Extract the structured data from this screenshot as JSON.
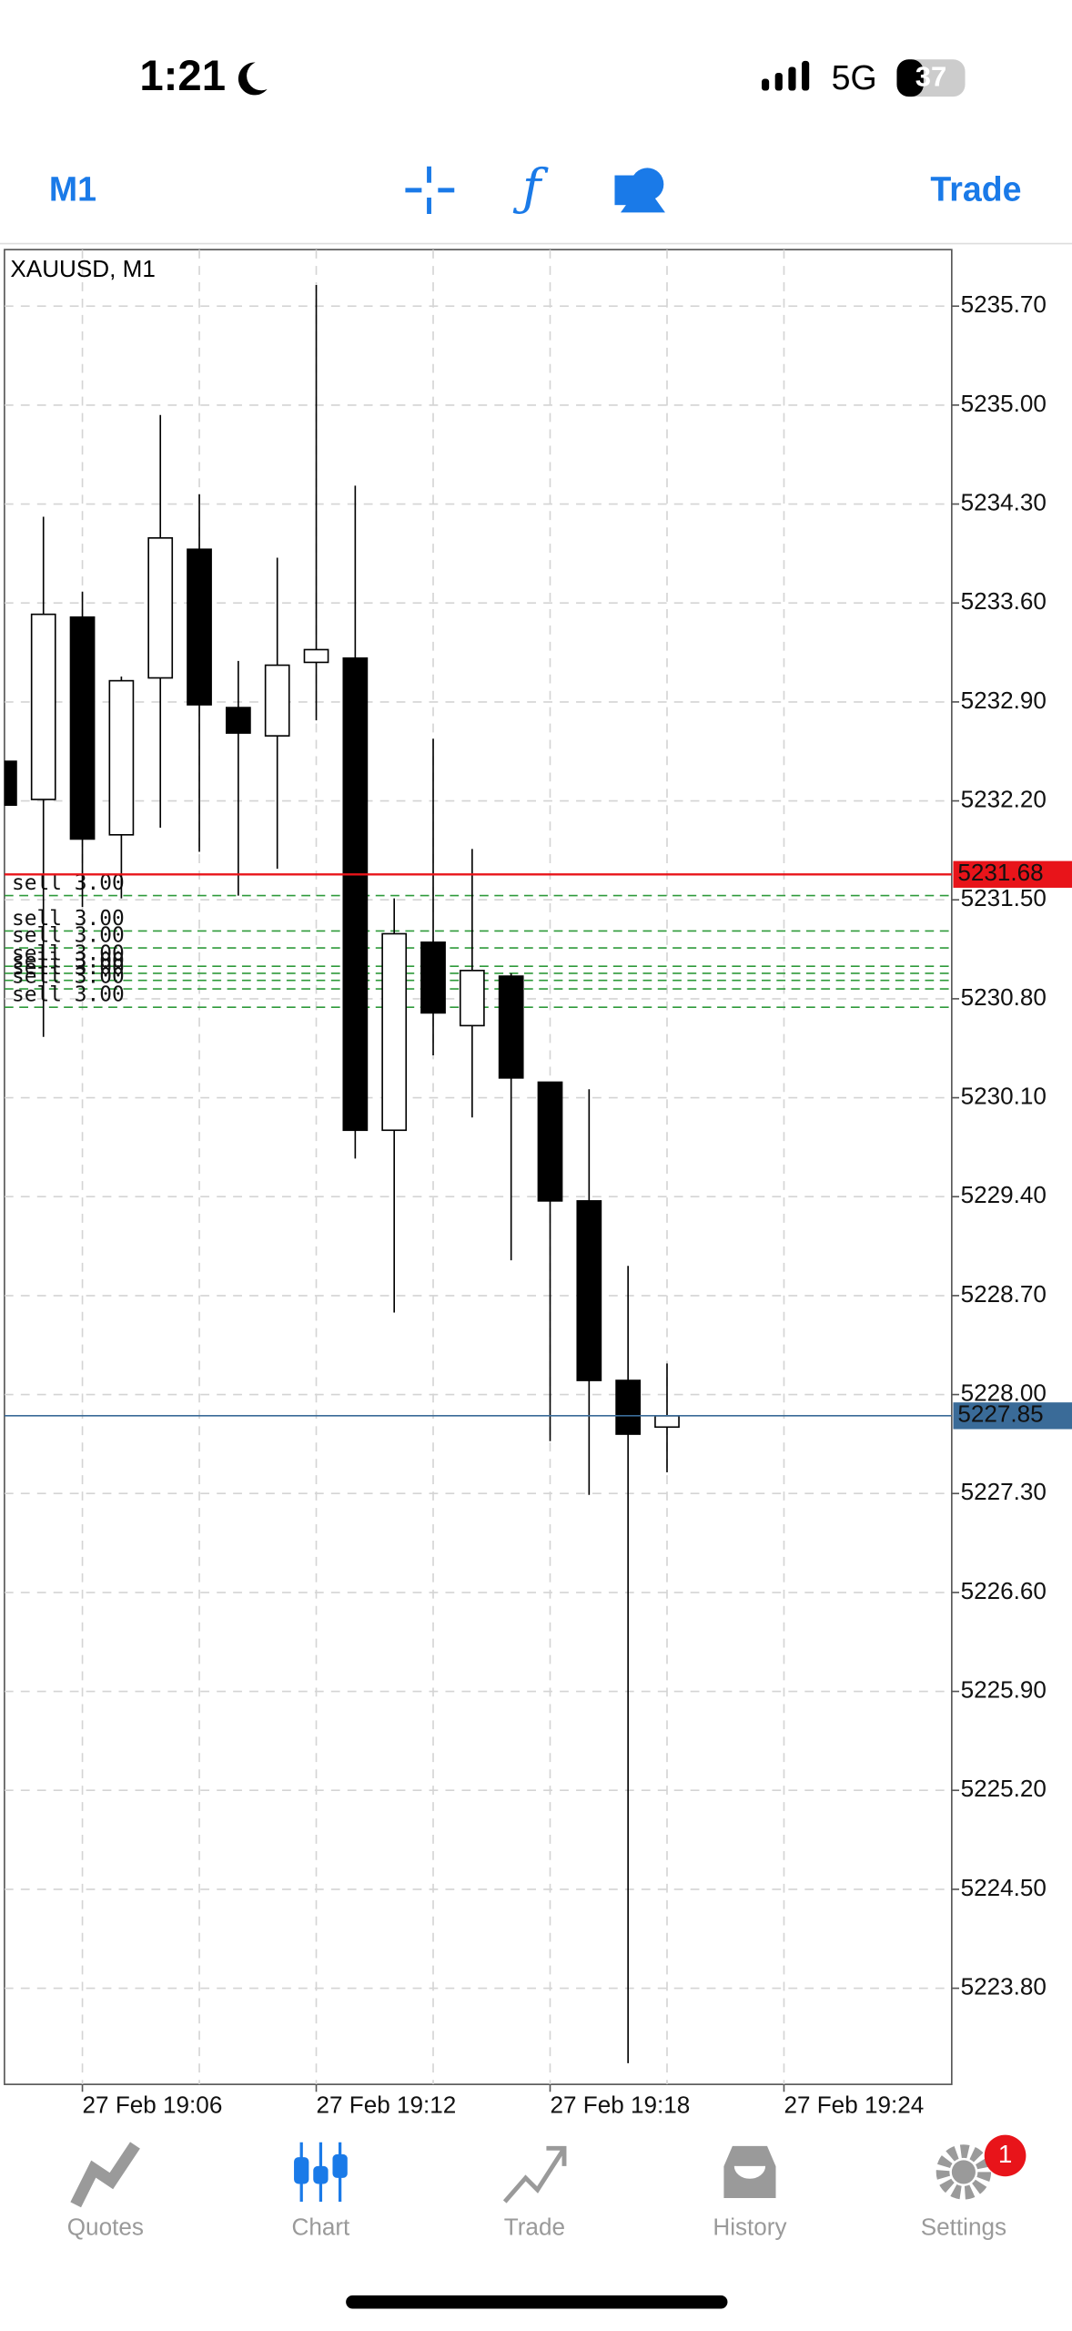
{
  "status_bar": {
    "time": "1:21",
    "network": "5G",
    "battery": "37"
  },
  "toolbar": {
    "timeframe": "M1",
    "trade": "Trade"
  },
  "chart_data": {
    "type": "candlestick",
    "title": "XAUUSD, M1",
    "x": [
      "27 Feb 19:04",
      "27 Feb 19:05",
      "27 Feb 19:06",
      "27 Feb 19:07",
      "27 Feb 19:08",
      "27 Feb 19:09",
      "27 Feb 19:10",
      "27 Feb 19:11",
      "27 Feb 19:12",
      "27 Feb 19:13",
      "27 Feb 19:14",
      "27 Feb 19:15",
      "27 Feb 19:16",
      "27 Feb 19:17",
      "27 Feb 19:18",
      "27 Feb 19:19",
      "27 Feb 19:20",
      "27 Feb 19:21"
    ],
    "open": [
      5232.48,
      5232.21,
      5233.5,
      5231.96,
      5233.07,
      5233.98,
      5232.86,
      5232.66,
      5233.18,
      5233.21,
      5229.87,
      5231.2,
      5230.61,
      5230.96,
      5230.21,
      5229.37,
      5228.1,
      5227.77
    ],
    "high": [
      5232.48,
      5234.21,
      5233.68,
      5233.08,
      5234.93,
      5234.37,
      5233.19,
      5233.92,
      5235.85,
      5234.43,
      5231.51,
      5232.64,
      5231.86,
      5230.98,
      5230.16,
      5230.16,
      5228.91,
      5228.22
    ],
    "low": [
      5232.17,
      5230.53,
      5231.45,
      5231.51,
      5232.01,
      5231.84,
      5231.53,
      5231.72,
      5232.77,
      5229.67,
      5228.58,
      5230.4,
      5229.96,
      5228.95,
      5227.67,
      5227.29,
      5223.27,
      5227.45
    ],
    "close": [
      5232.17,
      5233.52,
      5231.93,
      5233.05,
      5234.06,
      5232.88,
      5232.68,
      5233.16,
      5233.27,
      5229.87,
      5231.26,
      5230.7,
      5231.0,
      5230.24,
      5229.37,
      5228.1,
      5227.72,
      5227.85
    ],
    "up_color": "#ffffff",
    "down_color": "#000000",
    "ylim": [
      5223.12,
      5236.1
    ],
    "yticks": [
      {
        "value": 5235.7,
        "label": "5235.70"
      },
      {
        "value": 5235.0,
        "label": "5235.00"
      },
      {
        "value": 5234.3,
        "label": "5234.30"
      },
      {
        "value": 5233.6,
        "label": "5233.60"
      },
      {
        "value": 5232.9,
        "label": "5232.90"
      },
      {
        "value": 5232.2,
        "label": "5232.20"
      },
      {
        "value": 5231.5,
        "label": "5231.50"
      },
      {
        "value": 5230.8,
        "label": "5230.80"
      },
      {
        "value": 5230.1,
        "label": "5230.10"
      },
      {
        "value": 5229.4,
        "label": "5229.40"
      },
      {
        "value": 5228.7,
        "label": "5228.70"
      },
      {
        "value": 5228.0,
        "label": "5228.00"
      },
      {
        "value": 5227.3,
        "label": "5227.30"
      },
      {
        "value": 5226.6,
        "label": "5226.60"
      },
      {
        "value": 5225.9,
        "label": "5225.90"
      },
      {
        "value": 5225.2,
        "label": "5225.20"
      },
      {
        "value": 5224.5,
        "label": "5224.50"
      },
      {
        "value": 5223.8,
        "label": "5223.80"
      }
    ],
    "xticks": [
      "27 Feb 19:06",
      "27 Feb 19:12",
      "27 Feb 19:18",
      "27 Feb 19:24"
    ],
    "grid": true,
    "ask": 5231.68,
    "ask_color": "#e8141a",
    "bid": 5227.85,
    "bid_color": "#3a6b98",
    "orders": [
      {
        "label": "sell 3.00",
        "price": 5231.53
      },
      {
        "label": "sell 3.00",
        "price": 5231.28
      },
      {
        "label": "sell 3.00",
        "price": 5231.16
      },
      {
        "label": "sell 3.00",
        "price": 5231.03
      },
      {
        "label": "sell 3.00",
        "price": 5230.98
      },
      {
        "label": "sell 3.00",
        "price": 5230.93
      },
      {
        "label": "sell 3.00",
        "price": 5230.87
      },
      {
        "label": "sell 3.00",
        "price": 5230.74
      }
    ],
    "order_color": "#2e9a3a"
  },
  "tab_bar": {
    "tabs": [
      "Quotes",
      "Chart",
      "Trade",
      "History",
      "Settings"
    ],
    "active": 1,
    "badge": "1"
  }
}
